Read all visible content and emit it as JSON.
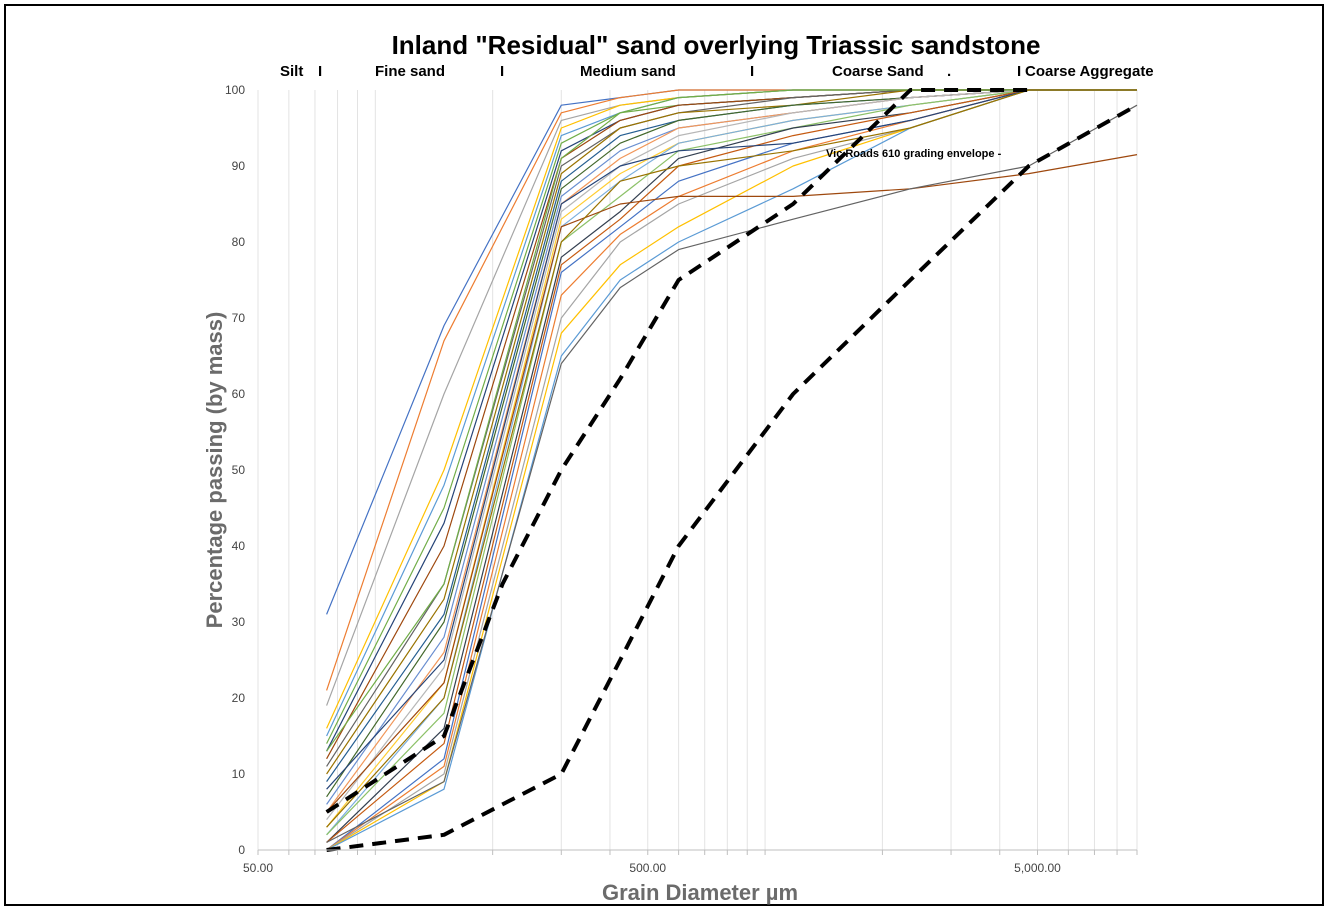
{
  "chart_data": {
    "type": "line",
    "title": "Inland \"Residual\" sand overlying Triassic sandstone",
    "xlabel": "Grain Diameter µm",
    "ylabel": "Percentage  passing (by mass)",
    "x_scale": "log",
    "xlim": [
      50,
      9000
    ],
    "ylim": [
      0,
      100
    ],
    "x_ticks": [
      "50.00",
      "500.00",
      "5,000.00"
    ],
    "y_ticks": [
      "0",
      "10",
      "20",
      "30",
      "40",
      "50",
      "60",
      "70",
      "80",
      "90",
      "100"
    ],
    "grid": "vertical minor log lines",
    "zones": [
      {
        "label": "Silt",
        "divider": "I"
      },
      {
        "label": "Fine sand",
        "divider": "I"
      },
      {
        "label": "Medium sand",
        "divider": "I"
      },
      {
        "label": "Coarse Sand",
        "divider": "."
      },
      {
        "label": "Coarse Aggregate",
        "divider": "I"
      }
    ],
    "annotation": "Vic Roads 610  grading envelope -",
    "envelope": [
      {
        "x": [
          75,
          150,
          212,
          300,
          425,
          600,
          1180,
          2360,
          4750,
          9000
        ],
        "values": [
          0,
          2,
          6,
          10,
          25,
          40,
          60,
          75,
          90,
          98
        ]
      },
      {
        "x": [
          75,
          150,
          212,
          300,
          425,
          600,
          1180,
          2360,
          4750
        ],
        "values": [
          5,
          15,
          35,
          50,
          62,
          75,
          85,
          100,
          100
        ]
      }
    ],
    "sieve_sizes": [
      75,
      150,
      300,
      425,
      600,
      1180,
      2360,
      4750,
      9000
    ],
    "series_colors": [
      "#4472c4",
      "#ed7d31",
      "#a5a5a5",
      "#ffc000",
      "#5b9bd5",
      "#70ad47",
      "#264478",
      "#9e480e",
      "#636363",
      "#997300",
      "#255e91",
      "#43682b",
      "#698ed0",
      "#f1975a",
      "#b7b7b7",
      "#ffcd33",
      "#7cafdd",
      "#8cc168",
      "#333f50",
      "#c55a11"
    ],
    "series": [
      {
        "values": [
          31,
          69,
          98,
          99,
          100,
          100,
          100,
          100,
          100
        ]
      },
      {
        "values": [
          21,
          67,
          97,
          99,
          100,
          100,
          100,
          100,
          100
        ]
      },
      {
        "values": [
          19,
          60,
          96,
          98,
          99,
          100,
          100,
          100,
          100
        ]
      },
      {
        "values": [
          16,
          50,
          95,
          98,
          99,
          100,
          100,
          100,
          100
        ]
      },
      {
        "values": [
          15,
          48,
          94,
          97,
          99,
          100,
          100,
          100,
          100
        ]
      },
      {
        "values": [
          14,
          45,
          93,
          97,
          98,
          99,
          100,
          100,
          100
        ]
      },
      {
        "values": [
          13,
          43,
          92,
          96,
          98,
          99,
          100,
          100,
          100
        ]
      },
      {
        "values": [
          12,
          40,
          91,
          96,
          98,
          99,
          100,
          100,
          100
        ]
      },
      {
        "values": [
          11,
          35,
          90,
          95,
          97,
          99,
          100,
          100,
          100
        ]
      },
      {
        "values": [
          10,
          33,
          89,
          95,
          97,
          98,
          100,
          100,
          100
        ]
      },
      {
        "values": [
          9,
          31,
          88,
          94,
          96,
          98,
          99,
          100,
          100
        ]
      },
      {
        "values": [
          7,
          30,
          87,
          93,
          96,
          98,
          99,
          100,
          100
        ]
      },
      {
        "values": [
          6,
          28,
          86,
          92,
          95,
          97,
          99,
          100,
          100
        ]
      },
      {
        "values": [
          5,
          26,
          85,
          91,
          95,
          97,
          99,
          100,
          100
        ]
      },
      {
        "values": [
          4,
          24,
          84,
          90,
          94,
          97,
          99,
          100,
          100
        ]
      },
      {
        "values": [
          3,
          22,
          83,
          89,
          93,
          96,
          98,
          100,
          100
        ]
      },
      {
        "values": [
          2,
          20,
          82,
          88,
          93,
          96,
          98,
          100,
          100
        ]
      },
      {
        "values": [
          2,
          18,
          80,
          86,
          92,
          95,
          98,
          100,
          100
        ]
      },
      {
        "values": [
          1,
          16,
          78,
          84,
          91,
          95,
          97,
          100,
          100
        ]
      },
      {
        "values": [
          1,
          14,
          77,
          83,
          90,
          94,
          97,
          100,
          100
        ]
      },
      {
        "values": [
          0,
          12,
          76,
          82,
          88,
          93,
          96,
          100,
          100
        ]
      },
      {
        "values": [
          0,
          11,
          73,
          81,
          86,
          92,
          96,
          100,
          100
        ]
      },
      {
        "values": [
          0,
          10,
          70,
          80,
          85,
          91,
          95,
          100,
          100
        ]
      },
      {
        "values": [
          0,
          9,
          68,
          77,
          82,
          90,
          95,
          100,
          100
        ]
      },
      {
        "values": [
          0,
          8,
          65,
          75,
          80,
          87,
          95,
          100,
          100
        ]
      },
      {
        "values": [
          13,
          35,
          91,
          97,
          99,
          100,
          100,
          100,
          100
        ]
      },
      {
        "values": [
          8,
          25,
          85,
          90,
          92,
          93,
          96,
          100,
          100
        ]
      },
      {
        "values": [
          5,
          22,
          82,
          85,
          86,
          86,
          87,
          89,
          91.5
        ]
      },
      {
        "values": [
          1,
          9,
          64,
          74,
          79,
          83,
          87,
          90,
          98
        ]
      },
      {
        "values": [
          3,
          20,
          80,
          88,
          90,
          92,
          95,
          100,
          100
        ]
      }
    ]
  }
}
